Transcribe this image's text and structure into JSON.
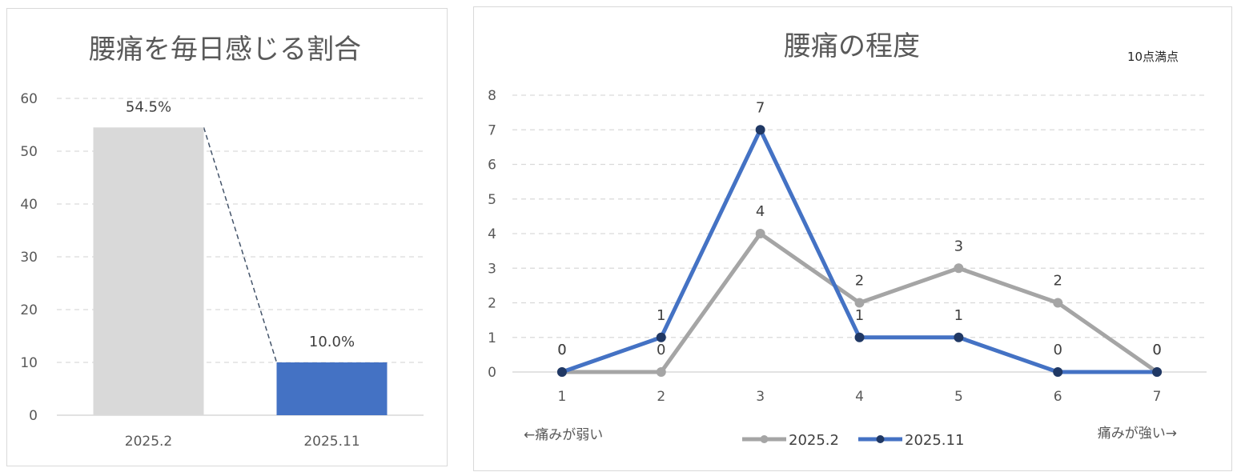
{
  "chart_data": [
    {
      "type": "bar",
      "title": "腰痛を毎日感じる割合",
      "categories": [
        "2025.2",
        "2025.11"
      ],
      "values": [
        54.5,
        10.0
      ],
      "data_labels": [
        "54.5%",
        "10.0%"
      ],
      "bar_colors": [
        "#d9d9d9",
        "#4472c4"
      ],
      "ylim": [
        0,
        60
      ],
      "yticks": [
        0,
        10,
        20,
        30,
        40,
        50,
        60
      ],
      "grid": true,
      "connector_color": "#44546a"
    },
    {
      "type": "line",
      "title": "腰痛の程度",
      "note": "10点満点",
      "x": [
        1,
        2,
        3,
        4,
        5,
        6,
        7
      ],
      "series": [
        {
          "name": "2025.2",
          "values": [
            0,
            0,
            4,
            2,
            3,
            2,
            0
          ],
          "color": "#a5a5a5"
        },
        {
          "name": "2025.11",
          "values": [
            0,
            1,
            7,
            1,
            1,
            0,
            0
          ],
          "color": "#4472c4",
          "marker_color": "#203864"
        }
      ],
      "ylim": [
        0,
        8
      ],
      "yticks": [
        0,
        1,
        2,
        3,
        4,
        5,
        6,
        7,
        8
      ],
      "grid": true,
      "legend_position": "bottom",
      "left_annotation": "←痛みが弱い",
      "right_annotation": "痛みが強い→"
    }
  ]
}
